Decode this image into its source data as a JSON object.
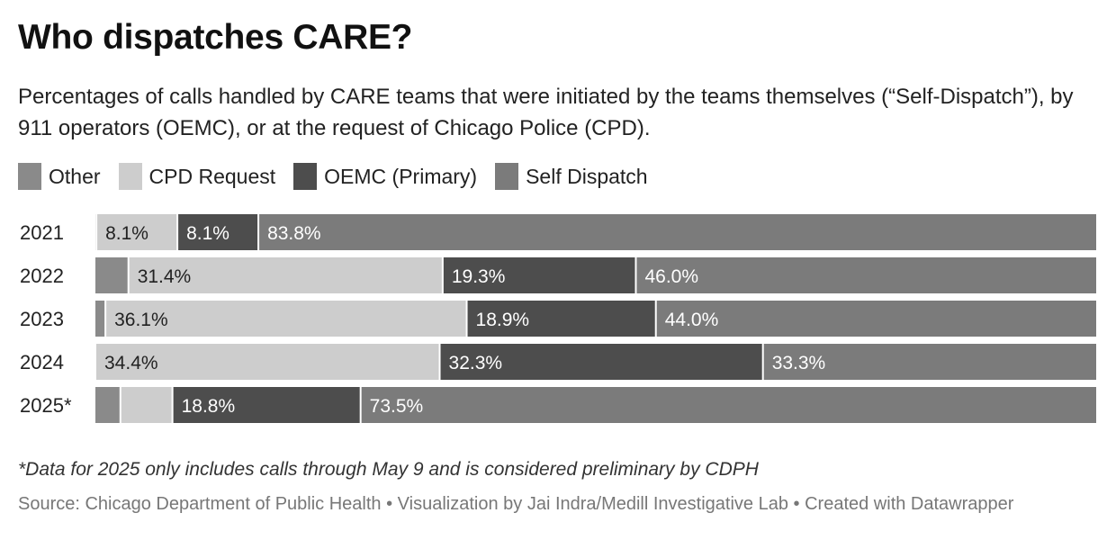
{
  "title": "Who dispatches CARE?",
  "subtitle": "Percentages of calls handled by CARE teams that were initiated by the teams themselves (“Self-Dispatch”), by 911 operators (OEMC), or at the request of Chicago Police (CPD).",
  "colors": {
    "Other": "#8a8a8a",
    "CPD Request": "#cdcdcd",
    "OEMC (Primary)": "#4d4d4d",
    "Self Dispatch": "#7b7b7b",
    "label_dark": "#222222",
    "label_light": "#ffffff"
  },
  "legend": [
    {
      "name": "Other",
      "color": "#8a8a8a"
    },
    {
      "name": "CPD Request",
      "color": "#cdcdcd"
    },
    {
      "name": "OEMC (Primary)",
      "color": "#4d4d4d"
    },
    {
      "name": "Self Dispatch",
      "color": "#7b7b7b"
    }
  ],
  "chart_data": {
    "type": "bar",
    "orientation": "horizontal",
    "stacked": true,
    "normalized_percent": true,
    "categories": [
      "2021",
      "2022",
      "2023",
      "2024",
      "2025*"
    ],
    "xlim": [
      0,
      100
    ],
    "series": [
      {
        "name": "Other",
        "values": [
          0.1,
          3.3,
          1.0,
          0.0,
          2.5
        ],
        "labels": [
          "",
          "",
          "",
          "",
          ""
        ]
      },
      {
        "name": "CPD Request",
        "values": [
          8.1,
          31.4,
          36.1,
          34.4,
          5.2
        ],
        "labels": [
          "8.1%",
          "31.4%",
          "36.1%",
          "34.4%",
          ""
        ]
      },
      {
        "name": "OEMC (Primary)",
        "values": [
          8.1,
          19.3,
          18.9,
          32.3,
          18.8
        ],
        "labels": [
          "8.1%",
          "19.3%",
          "18.9%",
          "32.3%",
          "18.8%"
        ]
      },
      {
        "name": "Self Dispatch",
        "values": [
          83.8,
          46.0,
          44.0,
          33.3,
          73.5
        ],
        "labels": [
          "83.8%",
          "46.0%",
          "44.0%",
          "33.3%",
          "73.5%"
        ]
      }
    ]
  },
  "note": "*Data for 2025 only includes calls through May 9 and is considered preliminary by CDPH",
  "source": "Source: Chicago Department of Public Health • Visualization by Jai Indra/Medill Investigative Lab • Created with Datawrapper"
}
